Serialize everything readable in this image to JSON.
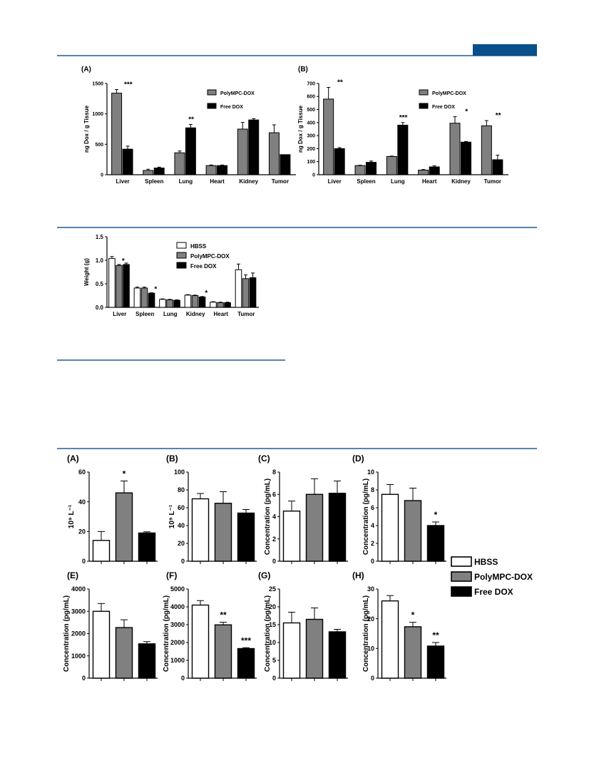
{
  "colors": {
    "rule": "#1f5c99",
    "header_block": "#0b4f8a",
    "hbss": "#ffffff",
    "polympc": "#808080",
    "freedox": "#000000"
  },
  "chart_data": [
    {
      "id": "fig1A",
      "type": "bar",
      "label": "(A)",
      "ylabel": "ng Dox / g Tissue",
      "ylim": [
        0,
        1500
      ],
      "yticks": [
        0,
        500,
        1000,
        1500
      ],
      "categories": [
        "Liver",
        "Spleen",
        "Lung",
        "Heart",
        "Kidney",
        "Tumor"
      ],
      "series": [
        {
          "name": "PolyMPC-DOX",
          "color": "#808080",
          "values": [
            1340,
            70,
            360,
            150,
            750,
            690
          ],
          "errors": [
            60,
            20,
            30,
            10,
            110,
            130
          ]
        },
        {
          "name": "Free DOX",
          "color": "#000000",
          "values": [
            420,
            110,
            770,
            150,
            900,
            330
          ],
          "errors": [
            50,
            15,
            55,
            10,
            20,
            0
          ]
        }
      ],
      "annotations": [
        {
          "category": "Liver",
          "text": "***"
        },
        {
          "category": "Lung",
          "text": "**"
        }
      ],
      "legend": {
        "position": "top-right",
        "items": [
          "PolyMPC-DOX",
          "Free DOX"
        ]
      }
    },
    {
      "id": "fig1B",
      "type": "bar",
      "label": "(B)",
      "ylabel": "ng Dox / g Tissue",
      "ylim": [
        0,
        700
      ],
      "yticks": [
        0,
        100,
        200,
        300,
        400,
        500,
        600,
        700
      ],
      "categories": [
        "Liver",
        "Spleen",
        "Lung",
        "Heart",
        "Kidney",
        "Tumor"
      ],
      "series": [
        {
          "name": "PolyMPC-DOX",
          "color": "#808080",
          "values": [
            580,
            70,
            140,
            35,
            395,
            375
          ],
          "errors": [
            90,
            3,
            3,
            5,
            50,
            40
          ]
        },
        {
          "name": "Free DOX",
          "color": "#000000",
          "values": [
            200,
            95,
            380,
            60,
            250,
            115
          ],
          "errors": [
            8,
            10,
            20,
            8,
            5,
            35
          ]
        }
      ],
      "annotations": [
        {
          "category": "Liver",
          "text": "**"
        },
        {
          "category": "Lung",
          "text": "***"
        },
        {
          "category": "Kidney",
          "text": "*"
        },
        {
          "category": "Tumor",
          "text": "**"
        }
      ],
      "legend": {
        "position": "top-right",
        "items": [
          "PolyMPC-DOX",
          "Free DOX"
        ]
      }
    },
    {
      "id": "fig2",
      "type": "bar",
      "label": "",
      "ylabel": "Weight (g)",
      "ylim": [
        0,
        1.5
      ],
      "yticks": [
        "0.0",
        "0.5",
        "1.0",
        "1.5"
      ],
      "categories": [
        "Liver",
        "Spleen",
        "Lung",
        "Kidney",
        "Heart",
        "Tumor"
      ],
      "series": [
        {
          "name": "HBSS",
          "color": "#ffffff",
          "values": [
            1.04,
            0.41,
            0.17,
            0.26,
            0.11,
            0.8
          ],
          "errors": [
            0.04,
            0.02,
            0.01,
            0.01,
            0.01,
            0.12
          ]
        },
        {
          "name": "PolyMPC-DOX",
          "color": "#808080",
          "values": [
            0.89,
            0.41,
            0.16,
            0.25,
            0.1,
            0.61
          ],
          "errors": [
            0.02,
            0.02,
            0.01,
            0.01,
            0.01,
            0.08
          ]
        },
        {
          "name": "Free DOX",
          "color": "#000000",
          "values": [
            0.91,
            0.3,
            0.15,
            0.22,
            0.1,
            0.63
          ],
          "errors": [
            0.03,
            0.01,
            0.01,
            0.01,
            0.01,
            0.1
          ]
        }
      ],
      "annotations": [
        {
          "category": "Liver",
          "series": 1,
          "text": "*"
        },
        {
          "category": "Spleen",
          "series": 2,
          "text": "*"
        },
        {
          "category": "Kidney",
          "series": 2,
          "text": "*"
        }
      ],
      "legend": {
        "position": "top-right",
        "items": [
          "HBSS",
          "PolyMPC-DOX",
          "Free DOX"
        ]
      }
    },
    {
      "id": "fig3A",
      "type": "bar",
      "label": "(A)",
      "ylabel": "10⁹ L⁻¹",
      "ylim": [
        0,
        60
      ],
      "yticks": [
        0,
        20,
        40,
        60
      ],
      "values": [
        14,
        46,
        19
      ],
      "errors": [
        6,
        8,
        0.8
      ],
      "annotations": [
        "",
        "*",
        ""
      ]
    },
    {
      "id": "fig3B",
      "type": "bar",
      "label": "(B)",
      "ylabel": "10⁹ L⁻¹",
      "ylim": [
        0,
        100
      ],
      "yticks": [
        0,
        20,
        40,
        60,
        80,
        100
      ],
      "values": [
        70,
        65,
        54
      ],
      "errors": [
        6,
        13,
        4
      ],
      "annotations": [
        "",
        "",
        ""
      ]
    },
    {
      "id": "fig3C",
      "type": "bar",
      "label": "(C)",
      "ylabel": "Concentration (pg/mL)",
      "ylim": [
        0,
        8
      ],
      "yticks": [
        0,
        2,
        4,
        6,
        8
      ],
      "values": [
        4.5,
        6,
        6.1
      ],
      "errors": [
        0.9,
        1.4,
        1.1
      ],
      "annotations": [
        "",
        "",
        ""
      ]
    },
    {
      "id": "fig3D",
      "type": "bar",
      "label": "(D)",
      "ylabel": "Concentration (pg/mL)",
      "ylim": [
        0,
        10
      ],
      "yticks": [
        0,
        2,
        4,
        6,
        8,
        10
      ],
      "values": [
        7.5,
        6.8,
        4.0
      ],
      "errors": [
        1.1,
        1.4,
        0.4
      ],
      "annotations": [
        "",
        "",
        "*"
      ]
    },
    {
      "id": "fig3E",
      "type": "bar",
      "label": "(E)",
      "ylabel": "Concentration (pg/mL)",
      "ylim": [
        0,
        4000
      ],
      "yticks": [
        0,
        1000,
        2000,
        3000,
        4000
      ],
      "values": [
        3000,
        2270,
        1540
      ],
      "errors": [
        350,
        350,
        100
      ],
      "annotations": [
        "",
        "",
        ""
      ]
    },
    {
      "id": "fig3F",
      "type": "bar",
      "label": "(F)",
      "ylabel": "Concentration (pg/mL)",
      "ylim": [
        0,
        5000
      ],
      "yticks": [
        0,
        1000,
        2000,
        3000,
        4000,
        5000
      ],
      "values": [
        4100,
        2990,
        1660
      ],
      "errors": [
        250,
        150,
        50
      ],
      "annotations": [
        "",
        "**",
        "***"
      ]
    },
    {
      "id": "fig3G",
      "type": "bar",
      "label": "(G)",
      "ylabel": "Concentration (pg/mL)",
      "ylim": [
        0,
        25
      ],
      "yticks": [
        0,
        5,
        10,
        15,
        20,
        25
      ],
      "values": [
        15.5,
        16.5,
        13
      ],
      "errors": [
        3,
        3.2,
        0.7
      ],
      "annotations": [
        "",
        "",
        ""
      ]
    },
    {
      "id": "fig3H",
      "type": "bar",
      "label": "(H)",
      "ylabel": "Concentration (pg/mL)",
      "ylim": [
        0,
        30
      ],
      "yticks": [
        0,
        10,
        20,
        30
      ],
      "values": [
        26,
        17.3,
        10.8
      ],
      "errors": [
        1.8,
        1.5,
        1.2
      ],
      "annotations": [
        "",
        "*",
        "**"
      ]
    }
  ],
  "legend3": {
    "items": [
      "HBSS",
      "PolyMPC-DOX",
      "Free DOX"
    ]
  }
}
